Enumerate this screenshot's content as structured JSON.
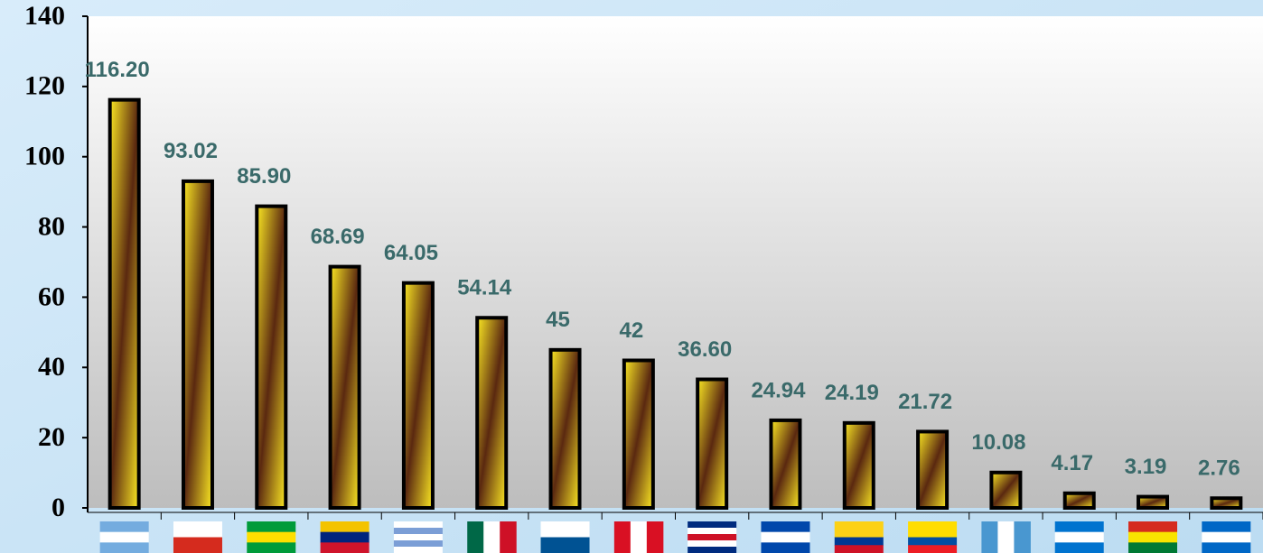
{
  "chart_data": {
    "type": "bar",
    "categories": [
      null,
      null,
      null,
      null,
      null,
      null,
      null,
      null,
      null,
      null,
      null,
      null,
      null,
      null,
      null,
      null
    ],
    "values": [
      116.2,
      93.02,
      85.9,
      68.69,
      64.05,
      54.14,
      45,
      42,
      36.6,
      24.94,
      24.19,
      21.72,
      10.08,
      4.17,
      3.19,
      2.76
    ],
    "value_labels": [
      "116.20",
      "93.02",
      "85.90",
      "68.69",
      "64.05",
      "54.14",
      "45",
      "42",
      "36.60",
      "24.94",
      "24.19",
      "21.72",
      "10.08",
      "4.17",
      "3.19",
      "2.76"
    ],
    "color": "#f2dc1e",
    "ylim": [
      0,
      140
    ],
    "yticks": [
      0,
      20,
      40,
      60,
      80,
      100,
      120,
      140
    ],
    "grid": false
  }
}
